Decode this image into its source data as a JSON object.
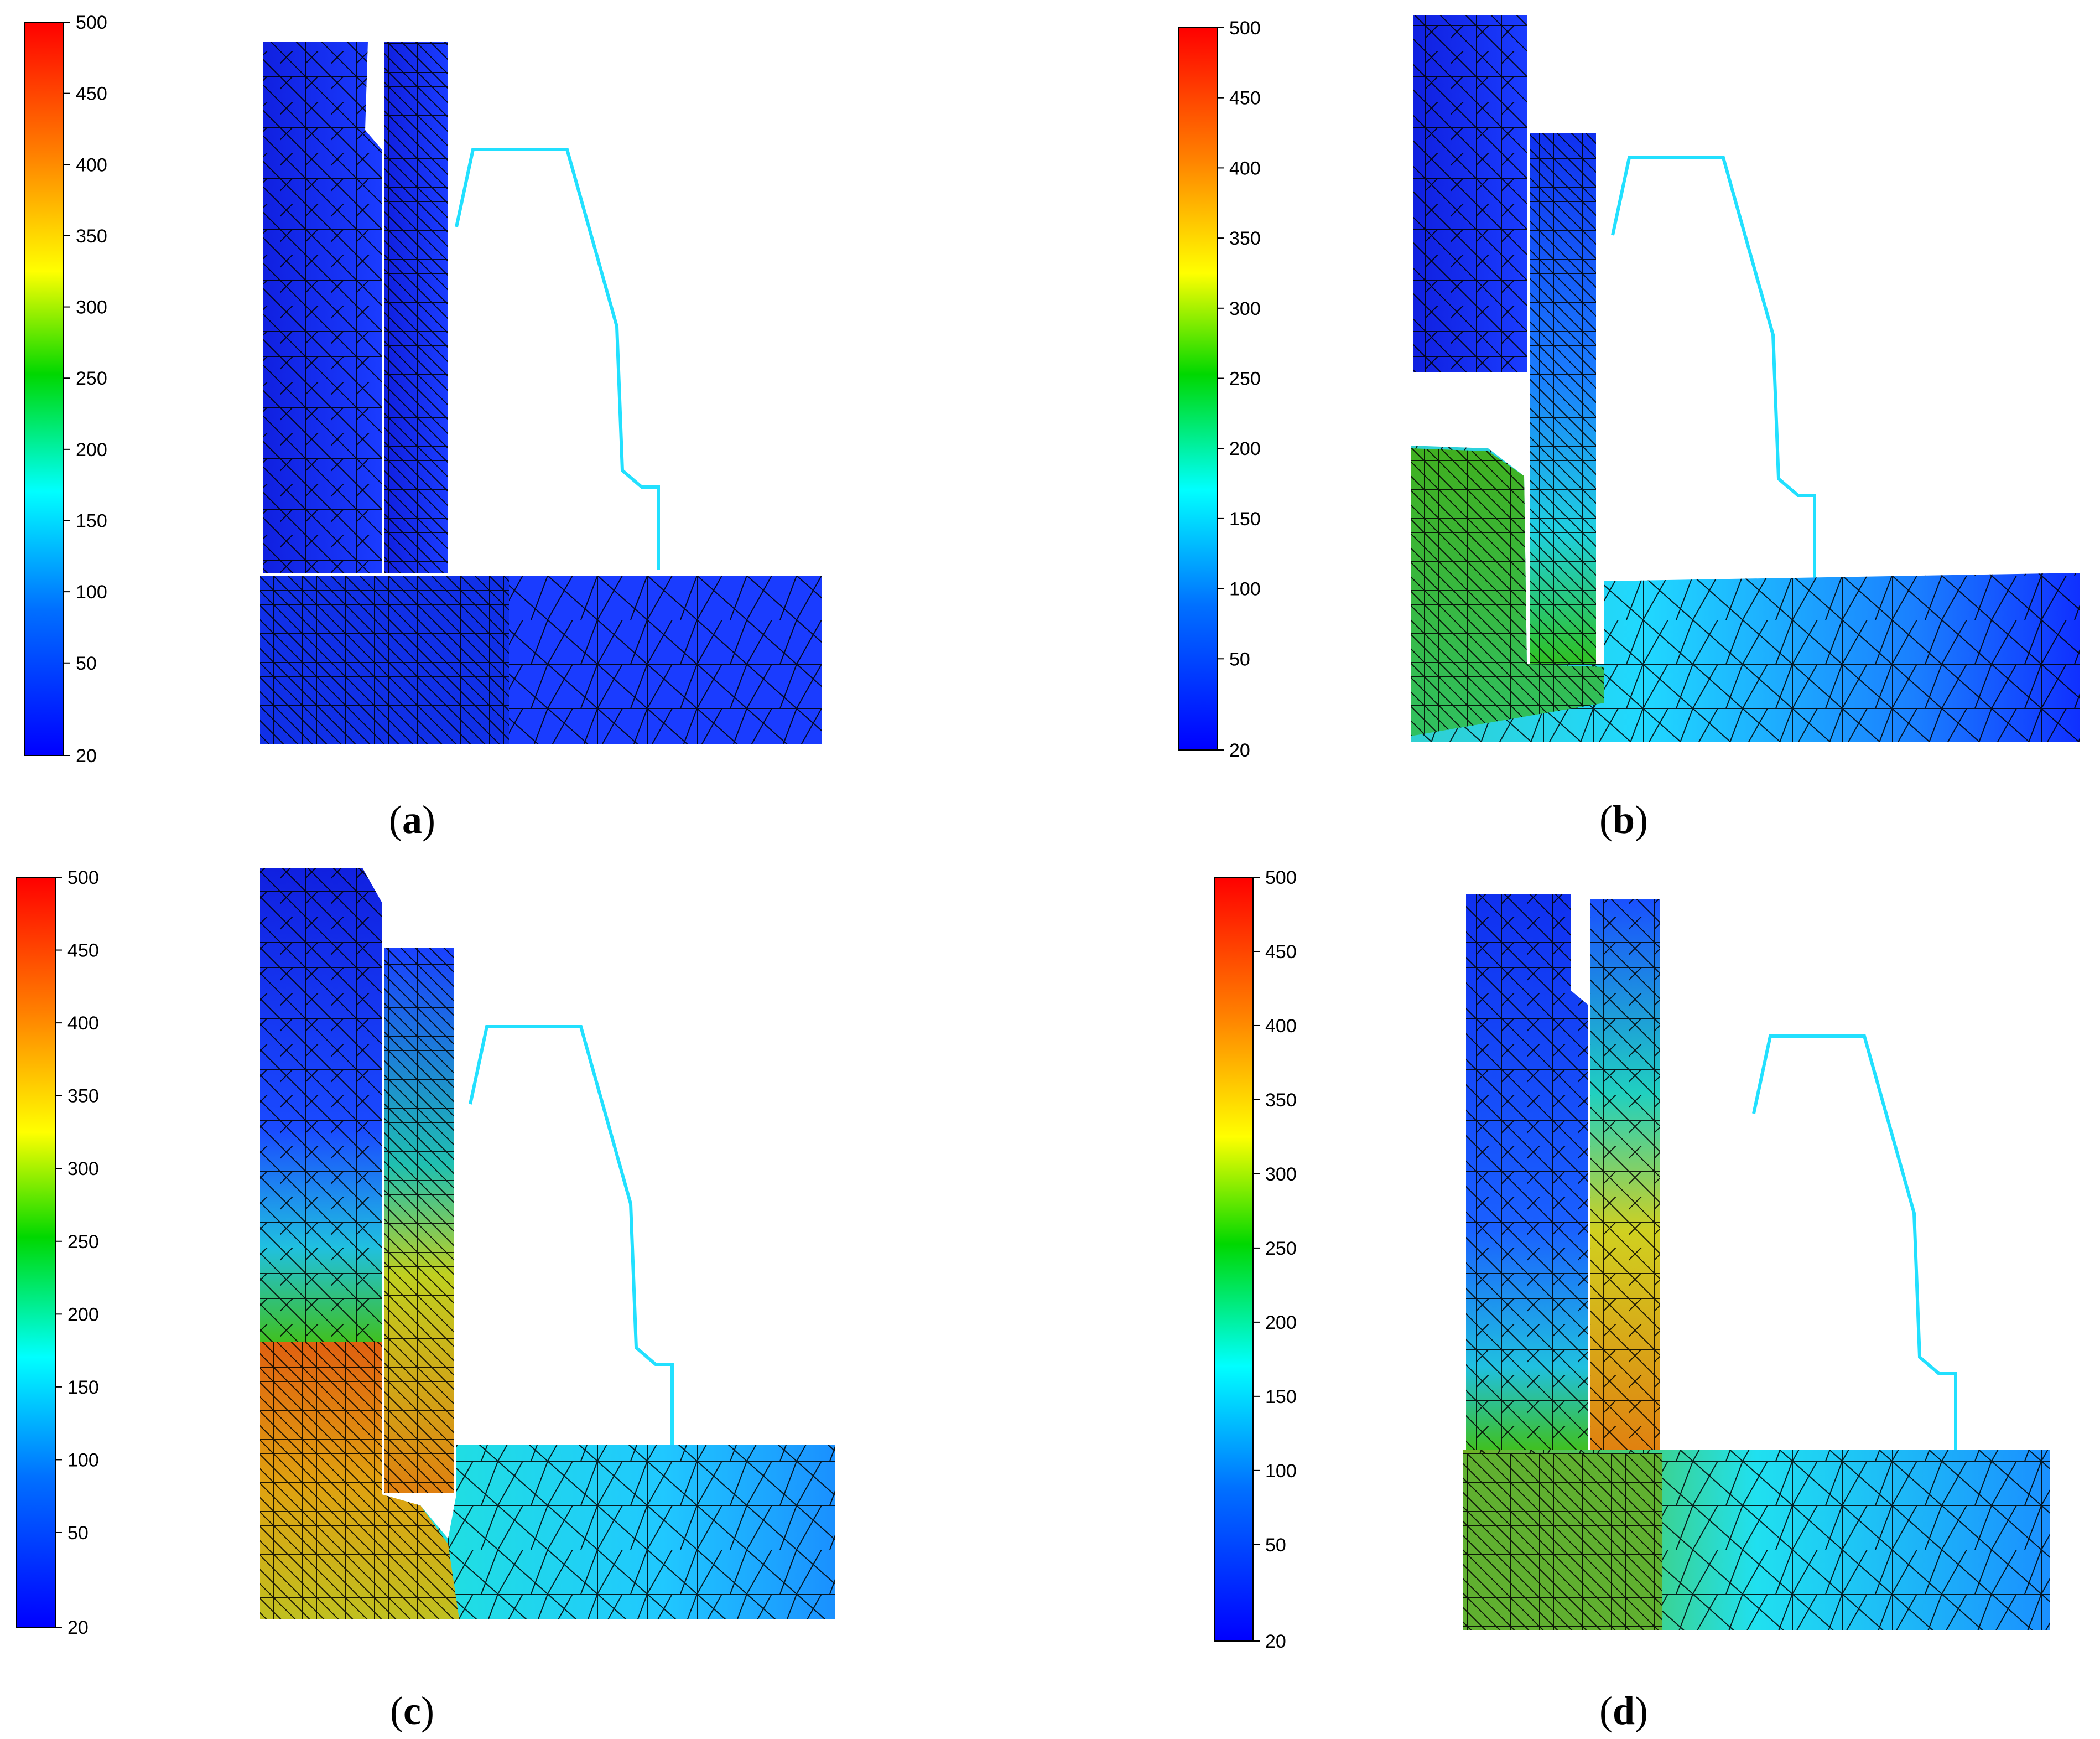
{
  "colorbar": {
    "ticks": [
      "500",
      "450",
      "400",
      "350",
      "300",
      "250",
      "200",
      "150",
      "100",
      "50",
      "20"
    ],
    "colors": [
      "#ff0000",
      "#ff8000",
      "#ffff00",
      "#00e000",
      "#00ffff",
      "#0080ff",
      "#0000ff"
    ]
  },
  "panels": [
    {
      "id": "a",
      "caption": "a"
    },
    {
      "id": "b",
      "caption": "b"
    },
    {
      "id": "c",
      "caption": "c"
    },
    {
      "id": "d",
      "caption": "d"
    }
  ],
  "punch_outline_color": "#22e0ff",
  "mesh_color": "#000000"
}
